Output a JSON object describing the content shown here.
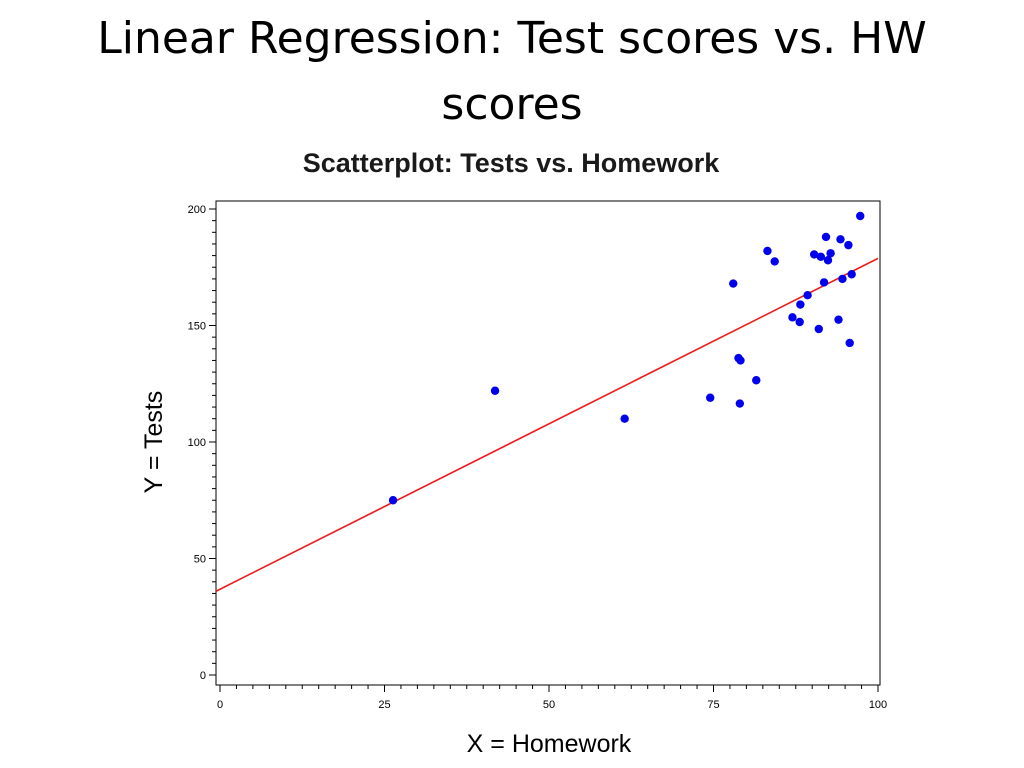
{
  "slide": {
    "title": "Linear Regression: Test scores vs. HW scores"
  },
  "chart_data": {
    "type": "scatter",
    "title": "Scatterplot: Tests vs. Homework",
    "xlabel": "X = Homework",
    "ylabel": "Y = Tests",
    "xlim": [
      0,
      100
    ],
    "ylim": [
      0,
      200
    ],
    "x_ticks": [
      0,
      25,
      50,
      75,
      100
    ],
    "y_ticks": [
      0,
      50,
      100,
      150,
      200
    ],
    "grid": false,
    "point_color": "#0000ee",
    "line_color": "#ee1c1c",
    "points": [
      {
        "x": 26.3,
        "y": 75.0
      },
      {
        "x": 41.8,
        "y": 122.0
      },
      {
        "x": 61.5,
        "y": 110.0
      },
      {
        "x": 74.5,
        "y": 119.0
      },
      {
        "x": 78.0,
        "y": 168.0
      },
      {
        "x": 78.8,
        "y": 136.0
      },
      {
        "x": 79.1,
        "y": 135.0
      },
      {
        "x": 79.0,
        "y": 116.5
      },
      {
        "x": 81.5,
        "y": 126.5
      },
      {
        "x": 83.2,
        "y": 182.0
      },
      {
        "x": 84.3,
        "y": 177.5
      },
      {
        "x": 87.0,
        "y": 153.5
      },
      {
        "x": 88.1,
        "y": 151.5
      },
      {
        "x": 88.2,
        "y": 159.0
      },
      {
        "x": 89.3,
        "y": 163.0
      },
      {
        "x": 90.3,
        "y": 180.5
      },
      {
        "x": 91.0,
        "y": 148.5
      },
      {
        "x": 91.3,
        "y": 179.5
      },
      {
        "x": 91.8,
        "y": 168.5
      },
      {
        "x": 92.1,
        "y": 188.0
      },
      {
        "x": 92.4,
        "y": 178.0
      },
      {
        "x": 92.8,
        "y": 181.0
      },
      {
        "x": 94.0,
        "y": 152.5
      },
      {
        "x": 94.3,
        "y": 187.0
      },
      {
        "x": 94.6,
        "y": 170.0
      },
      {
        "x": 95.5,
        "y": 184.5
      },
      {
        "x": 95.7,
        "y": 142.5
      },
      {
        "x": 96.0,
        "y": 172.0
      },
      {
        "x": 97.3,
        "y": 197.0
      }
    ],
    "regression_line": {
      "intercept": 36.8,
      "slope": 1.42
    }
  }
}
